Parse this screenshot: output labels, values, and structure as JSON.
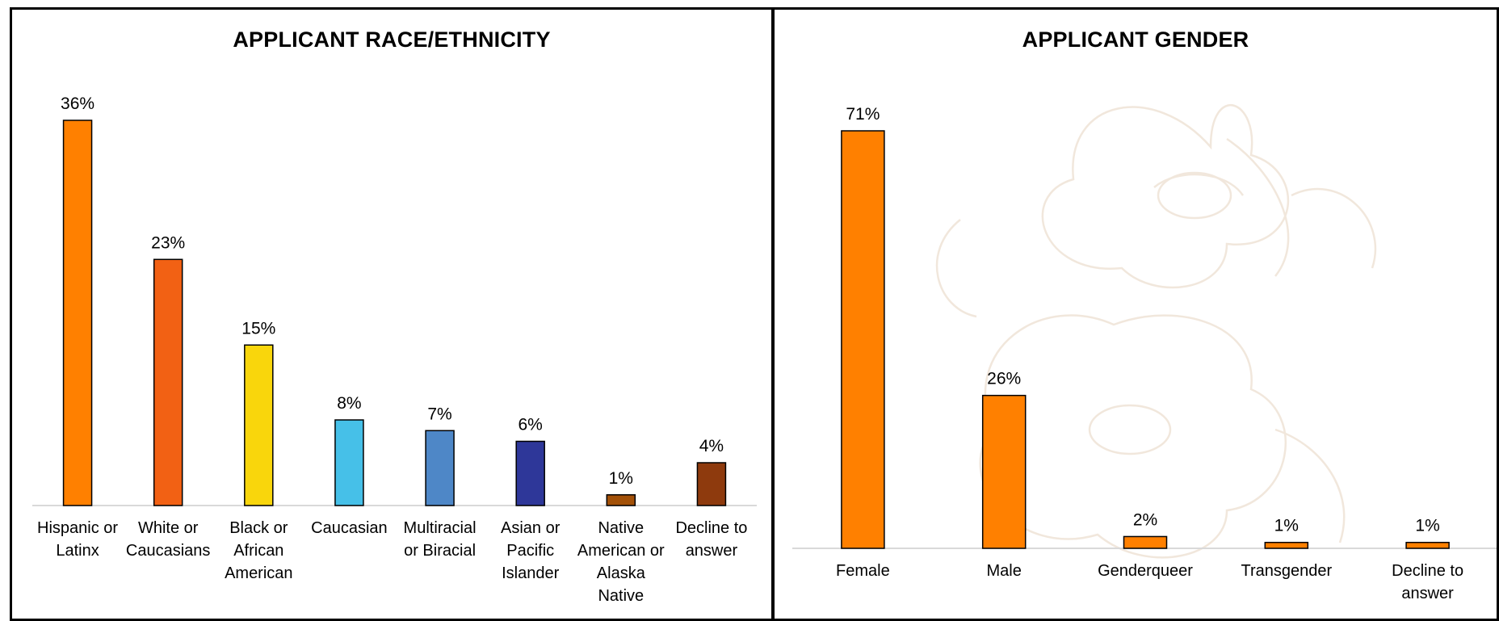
{
  "chart_data": [
    {
      "type": "bar",
      "title": "APPLICANT RACE/ETHNICITY",
      "categories": [
        "Hispanic or Latinx",
        "White or Caucasians",
        "Black or African American",
        "Caucasian",
        "Multiracial or Biracial",
        "Asian or Pacific Islander",
        "Native American or Alaska Native",
        "Decline to answer"
      ],
      "values": [
        36,
        23,
        15,
        8,
        7,
        6,
        1,
        4
      ],
      "value_labels": [
        "36%",
        "23%",
        "15%",
        "8%",
        "7%",
        "6%",
        "1%",
        "4%"
      ],
      "colors": [
        "#ff8000",
        "#f26114",
        "#f9d60c",
        "#46c0e8",
        "#4e87c7",
        "#2e3799",
        "#a35108",
        "#8e3a0d"
      ],
      "ylim": [
        0,
        36
      ],
      "grid": false,
      "legend": "none"
    },
    {
      "type": "bar",
      "title": "APPLICANT GENDER",
      "categories": [
        "Female",
        "Male",
        "Genderqueer",
        "Transgender",
        "Decline to answer"
      ],
      "values": [
        71,
        26,
        2,
        1,
        1
      ],
      "value_labels": [
        "71%",
        "26%",
        "2%",
        "1%",
        "1%"
      ],
      "colors": [
        "#ff8000",
        "#ff8000",
        "#ff8000",
        "#ff8000",
        "#ff8000"
      ],
      "ylim": [
        0,
        71
      ],
      "grid": false,
      "legend": "none"
    }
  ]
}
